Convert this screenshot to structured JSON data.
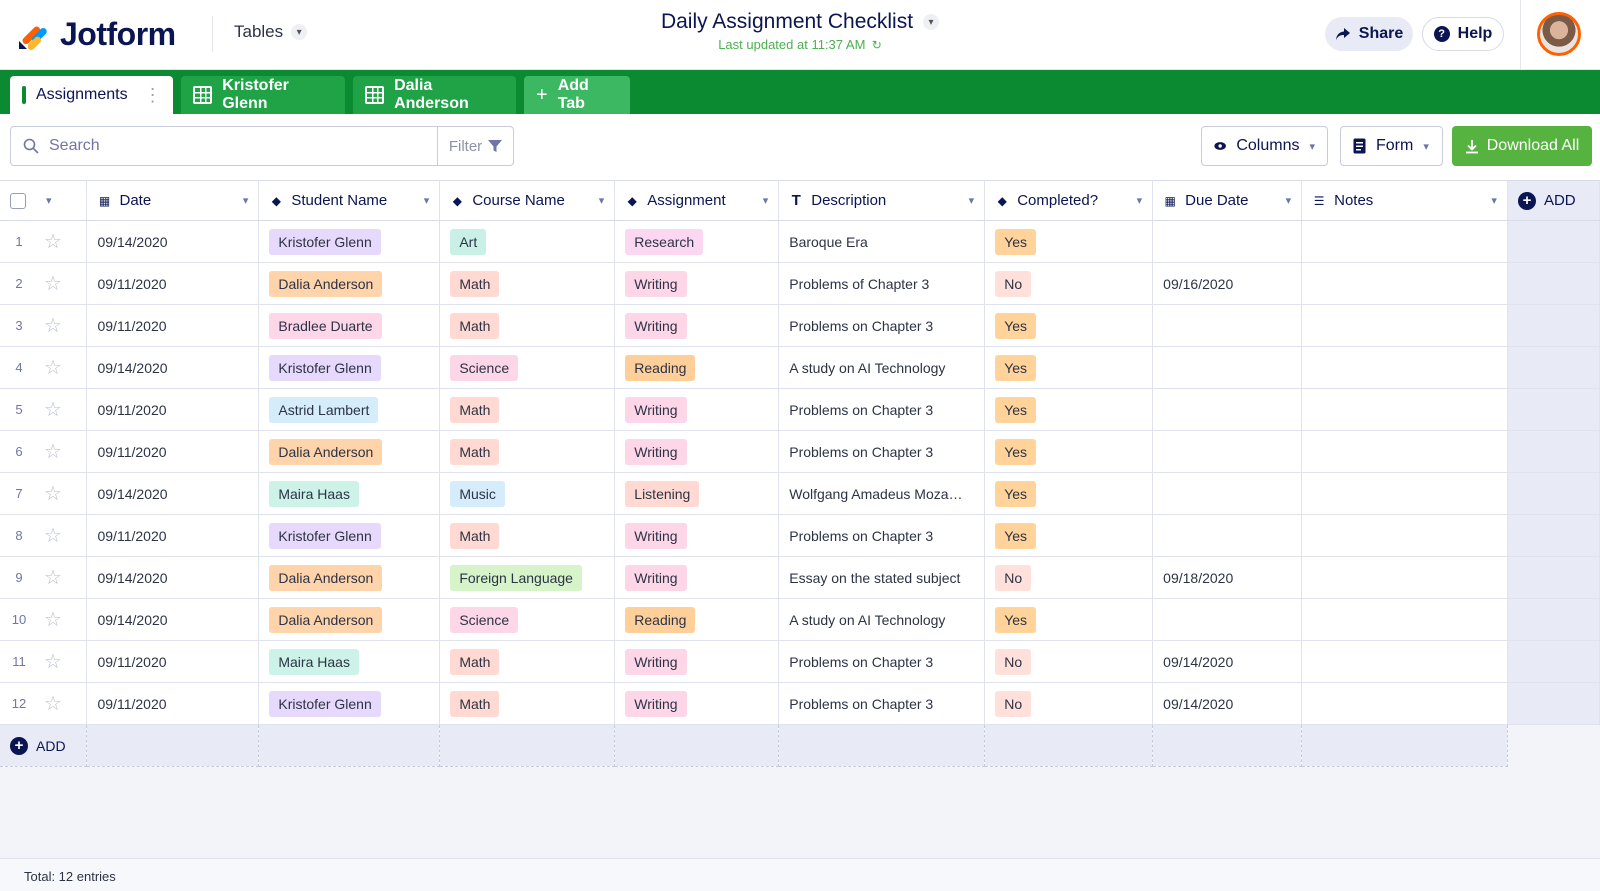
{
  "header": {
    "logo_text": "Jotform",
    "tables_menu": "Tables",
    "title": "Daily Assignment Checklist",
    "subtitle": "Last updated at 11:37 AM",
    "share_label": "Share",
    "help_label": "Help"
  },
  "tabs": [
    {
      "label": "Assignments"
    },
    {
      "label": "Kristofer Glenn"
    },
    {
      "label": "Dalia Anderson"
    },
    {
      "label": "Add Tab"
    }
  ],
  "toolbar": {
    "search_placeholder": "Search",
    "filter_label": "Filter",
    "columns_label": "Columns",
    "form_label": "Form",
    "download_label": "Download All"
  },
  "table": {
    "columns": [
      {
        "label": "Date",
        "icon": "calendar-icon"
      },
      {
        "label": "Student Name",
        "icon": "tag-icon"
      },
      {
        "label": "Course Name",
        "icon": "tag-icon"
      },
      {
        "label": "Assignment",
        "icon": "tag-icon"
      },
      {
        "label": "Description",
        "icon": "text-icon"
      },
      {
        "label": "Completed?",
        "icon": "tag-icon"
      },
      {
        "label": "Due Date",
        "icon": "calendar-icon"
      },
      {
        "label": "Notes",
        "icon": "long-text-icon"
      }
    ],
    "add_column_label": "ADD",
    "add_row_label": "ADD",
    "rows": [
      {
        "num": "1",
        "date": "09/14/2020",
        "student": "Kristofer Glenn",
        "student_color": "purple",
        "course": "Art",
        "course_color": "teal",
        "assignment": "Research",
        "assignment_color": "magenta",
        "description": "Baroque Era",
        "completed": "Yes",
        "due": "",
        "notes": ""
      },
      {
        "num": "2",
        "date": "09/11/2020",
        "student": "Dalia Anderson",
        "student_color": "orange",
        "course": "Math",
        "course_color": "salmon",
        "assignment": "Writing",
        "assignment_color": "pink",
        "description": "Problems of Chapter 3",
        "completed": "No",
        "due": "09/16/2020",
        "notes": ""
      },
      {
        "num": "3",
        "date": "09/11/2020",
        "student": "Bradlee Duarte",
        "student_color": "pink",
        "course": "Math",
        "course_color": "salmon",
        "assignment": "Writing",
        "assignment_color": "pink",
        "description": "Problems on Chapter 3",
        "completed": "Yes",
        "due": "",
        "notes": ""
      },
      {
        "num": "4",
        "date": "09/14/2020",
        "student": "Kristofer Glenn",
        "student_color": "purple",
        "course": "Science",
        "course_color": "pink",
        "assignment": "Reading",
        "assignment_color": "amber",
        "description": "A study on AI Technology",
        "completed": "Yes",
        "due": "",
        "notes": ""
      },
      {
        "num": "5",
        "date": "09/11/2020",
        "student": "Astrid Lambert",
        "student_color": "blue",
        "course": "Math",
        "course_color": "salmon",
        "assignment": "Writing",
        "assignment_color": "pink",
        "description": "Problems on Chapter 3",
        "completed": "Yes",
        "due": "",
        "notes": ""
      },
      {
        "num": "6",
        "date": "09/11/2020",
        "student": "Dalia Anderson",
        "student_color": "orange",
        "course": "Math",
        "course_color": "salmon",
        "assignment": "Writing",
        "assignment_color": "pink",
        "description": "Problems on Chapter 3",
        "completed": "Yes",
        "due": "",
        "notes": ""
      },
      {
        "num": "7",
        "date": "09/14/2020",
        "student": "Maira Haas",
        "student_color": "mint",
        "course": "Music",
        "course_color": "blue",
        "assignment": "Listening",
        "assignment_color": "salmon",
        "description": "Wolfgang Amadeus Moza…",
        "completed": "Yes",
        "due": "",
        "notes": ""
      },
      {
        "num": "8",
        "date": "09/11/2020",
        "student": "Kristofer Glenn",
        "student_color": "purple",
        "course": "Math",
        "course_color": "salmon",
        "assignment": "Writing",
        "assignment_color": "pink",
        "description": "Problems on Chapter 3",
        "completed": "Yes",
        "due": "",
        "notes": ""
      },
      {
        "num": "9",
        "date": "09/14/2020",
        "student": "Dalia Anderson",
        "student_color": "orange",
        "course": "Foreign Language",
        "course_color": "green",
        "assignment": "Writing",
        "assignment_color": "pink",
        "description": "Essay on the stated subject",
        "completed": "No",
        "due": "09/18/2020",
        "notes": ""
      },
      {
        "num": "10",
        "date": "09/14/2020",
        "student": "Dalia Anderson",
        "student_color": "orange",
        "course": "Science",
        "course_color": "pink",
        "assignment": "Reading",
        "assignment_color": "amber",
        "description": "A study on AI Technology",
        "completed": "Yes",
        "due": "",
        "notes": ""
      },
      {
        "num": "11",
        "date": "09/11/2020",
        "student": "Maira Haas",
        "student_color": "mint",
        "course": "Math",
        "course_color": "salmon",
        "assignment": "Writing",
        "assignment_color": "pink",
        "description": "Problems on Chapter 3",
        "completed": "No",
        "due": "09/14/2020",
        "notes": ""
      },
      {
        "num": "12",
        "date": "09/11/2020",
        "student": "Kristofer Glenn",
        "student_color": "purple",
        "course": "Math",
        "course_color": "salmon",
        "assignment": "Writing",
        "assignment_color": "pink",
        "description": "Problems on Chapter 3",
        "completed": "No",
        "due": "09/14/2020",
        "notes": ""
      }
    ]
  },
  "footer": {
    "total_label": "Total: 12 entries"
  },
  "colors": {
    "brand_green": "#0b8a32",
    "navy": "#0a1551",
    "download_green": "#56b33f",
    "avatar_ring": "#ff6100"
  }
}
